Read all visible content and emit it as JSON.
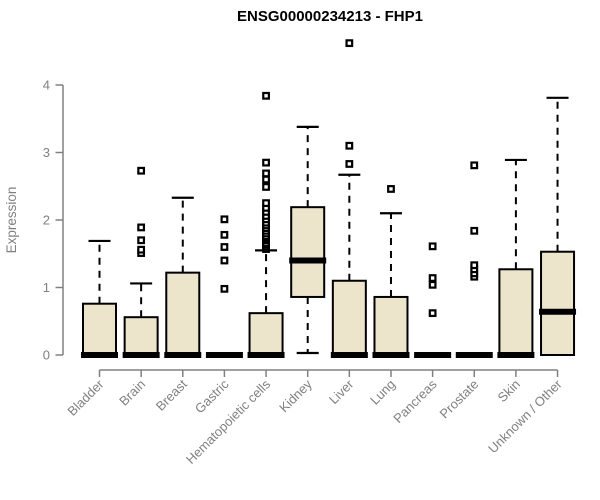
{
  "chart_data": {
    "type": "boxplot",
    "title": "ENSG00000234213 - FHP1",
    "ylabel": "Expression",
    "ylim": [
      0,
      4
    ],
    "yticks": [
      0,
      1,
      2,
      3,
      4
    ],
    "grid": false,
    "legend": "none",
    "axis_color": "#808080",
    "box_fill": "#ECE5CB",
    "box_border": "#000000",
    "median_color": "#000000",
    "categories": [
      "Bladder",
      "Brain",
      "Breast",
      "Gastric",
      "Hematopoietic cells",
      "Kidney",
      "Liver",
      "Lung",
      "Pancreas",
      "Prostate",
      "Skin",
      "Unknown / Other"
    ],
    "boxes": [
      {
        "label": "Bladder",
        "q1": 0,
        "median": 0,
        "q3": 0.76,
        "whisker_low": 0,
        "whisker_high": 1.69,
        "outliers": []
      },
      {
        "label": "Brain",
        "q1": 0,
        "median": 0,
        "q3": 0.56,
        "whisker_low": 0,
        "whisker_high": 1.06,
        "outliers": [
          1.51,
          1.56,
          1.7,
          1.89,
          2.73
        ]
      },
      {
        "label": "Breast",
        "q1": 0,
        "median": 0,
        "q3": 1.22,
        "whisker_low": 0,
        "whisker_high": 2.33,
        "outliers": []
      },
      {
        "label": "Gastric",
        "q1": 0,
        "median": 0,
        "q3": 0,
        "whisker_low": 0,
        "whisker_high": 0,
        "outliers": [
          0.98,
          1.4,
          1.6,
          1.78,
          2.01
        ]
      },
      {
        "label": "Hematopoietic cells",
        "q1": 0,
        "median": 0,
        "q3": 0.62,
        "whisker_low": 0,
        "whisker_high": 1.55,
        "outliers": [
          1.57,
          1.6,
          1.63,
          1.66,
          1.7,
          1.73,
          1.76,
          1.8,
          1.84,
          1.88,
          1.92,
          1.96,
          2.01,
          2.06,
          2.12,
          2.18,
          2.25,
          2.49,
          2.6,
          2.69,
          2.85,
          3.84
        ]
      },
      {
        "label": "Kidney",
        "q1": 0.86,
        "median": 1.4,
        "q3": 2.19,
        "whisker_low": 0.03,
        "whisker_high": 3.38,
        "outliers": []
      },
      {
        "label": "Liver",
        "q1": 0,
        "median": 0,
        "q3": 1.1,
        "whisker_low": 0,
        "whisker_high": 2.67,
        "outliers": [
          2.83,
          3.1,
          4.62
        ]
      },
      {
        "label": "Lung",
        "q1": 0,
        "median": 0,
        "q3": 0.86,
        "whisker_low": 0,
        "whisker_high": 2.1,
        "outliers": [
          2.46
        ]
      },
      {
        "label": "Pancreas",
        "q1": 0,
        "median": 0,
        "q3": 0,
        "whisker_low": 0,
        "whisker_high": 0,
        "outliers": [
          0.62,
          1.04,
          1.14,
          1.61
        ]
      },
      {
        "label": "Prostate",
        "q1": 0,
        "median": 0,
        "q3": 0,
        "whisker_low": 0,
        "whisker_high": 0,
        "outliers": [
          1.16,
          1.21,
          1.27,
          1.33,
          1.84,
          2.81
        ]
      },
      {
        "label": "Skin",
        "q1": 0,
        "median": 0,
        "q3": 1.27,
        "whisker_low": 0,
        "whisker_high": 2.89,
        "outliers": []
      },
      {
        "label": "Unknown / Other",
        "q1": 0,
        "median": 0.64,
        "q3": 1.53,
        "whisker_low": 0,
        "whisker_high": 3.81,
        "outliers": []
      }
    ]
  }
}
